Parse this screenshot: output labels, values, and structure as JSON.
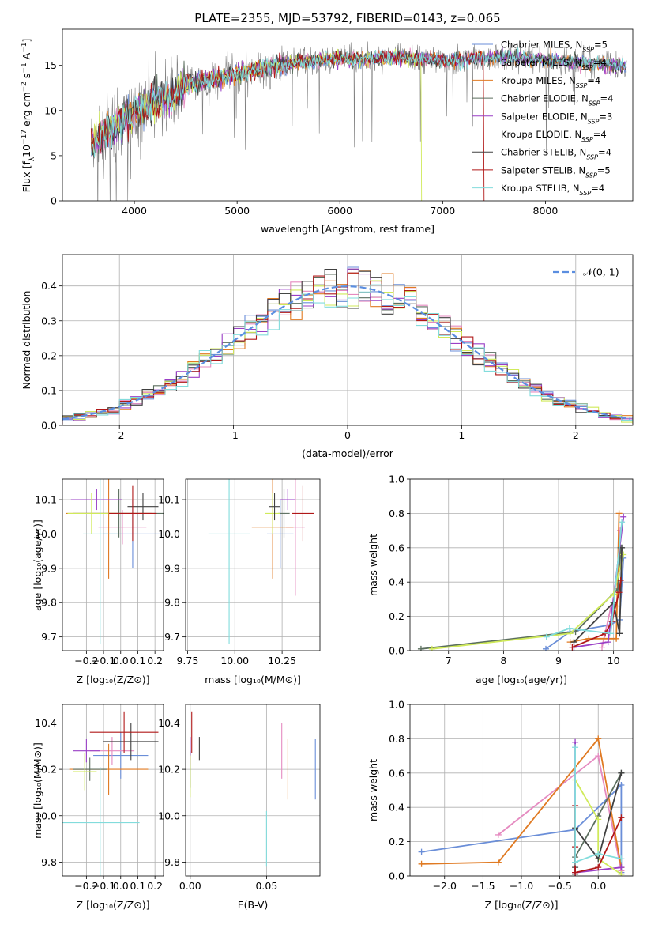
{
  "chart_data": [
    {
      "id": "spectrum",
      "type": "line",
      "title": "PLATE=2355, MJD=53792, FIBERID=0143, z=0.065",
      "xlabel": "wavelength [Angstrom, rest frame]",
      "ylabel": "Flux [fλ10⁻¹⁷ erg cm⁻² s⁻¹ A⁻¹]",
      "xlim": [
        3300,
        8850
      ],
      "ylim": [
        0,
        19
      ],
      "xticks": [
        4000,
        5000,
        6000,
        7000,
        8000
      ],
      "yticks": [
        0,
        5,
        10,
        15
      ],
      "grid": false,
      "legend": "right",
      "series": [
        {
          "name": "Chabrier MILES, NSSP=5",
          "color": "#6a8ed8"
        },
        {
          "name": "Salpeter MILES, NSSP=4",
          "color": "#e58ac0"
        },
        {
          "name": "Kroupa MILES, NSSP=4",
          "color": "#e07a22"
        },
        {
          "name": "Chabrier ELODIE, NSSP=4",
          "color": "#5b6e5e"
        },
        {
          "name": "Salpeter ELODIE, NSSP=3",
          "color": "#9a3fc6"
        },
        {
          "name": "Kroupa ELODIE, NSSP=4",
          "color": "#d0ea5a"
        },
        {
          "name": "Chabrier STELIB, NSSP=4",
          "color": "#404040"
        },
        {
          "name": "Salpeter STELIB, NSSP=5",
          "color": "#b01818"
        },
        {
          "name": "Kroupa STELIB, NSSP=4",
          "color": "#82dcdc"
        }
      ],
      "observed_color": "#808080",
      "continuum": {
        "x": [
          3580,
          3700,
          3800,
          3900,
          4000,
          4100,
          4200,
          4300,
          4400,
          4500,
          4600,
          4800,
          5000,
          5200,
          5500,
          5800,
          6000,
          6200,
          6500,
          6800,
          7000,
          7300,
          7600,
          8000,
          8400,
          8800
        ],
        "y": [
          6.0,
          7.5,
          8.0,
          9.0,
          10.0,
          10.5,
          11.2,
          11.2,
          11.9,
          12.9,
          13.1,
          13.6,
          14.0,
          14.6,
          15.2,
          15.6,
          15.8,
          15.7,
          15.9,
          15.7,
          15.5,
          15.7,
          16.0,
          15.6,
          15.3,
          14.8
        ]
      },
      "dropouts": [
        {
          "name": "Kroupa ELODIE, NSSP=4",
          "x": 6790
        },
        {
          "name": "Salpeter STELIB, NSSP=5",
          "x": 7400
        }
      ]
    },
    {
      "id": "residuals",
      "type": "histogram",
      "xlabel": "(data-model)/error",
      "ylabel": "Normed distribution",
      "xlim": [
        -2.5,
        2.5
      ],
      "ylim": [
        0,
        0.49
      ],
      "xticks": [
        -2,
        -1,
        0,
        1,
        2
      ],
      "yticks": [
        0.0,
        0.1,
        0.2,
        0.3,
        0.4
      ],
      "grid": true,
      "legend": "top-right",
      "reference": {
        "name": "𝒩(0, 1)",
        "color": "#5b8ee0",
        "mean": 0,
        "sigma": 1
      },
      "bin_width": 0.1
    },
    {
      "id": "age_vs_Z",
      "type": "errorbar",
      "xlabel": "Z [log₁₀(Z/Z⊙)]",
      "ylabel": "age  [log₁₀(age/yr)]",
      "xlim": [
        -0.34,
        0.25
      ],
      "ylim": [
        9.66,
        10.16
      ],
      "xticks": [
        -0.2,
        -0.1,
        0.0,
        0.1,
        0.2
      ],
      "xtick_labels": [
        "−0.2",
        "−0.1",
        "0.0",
        "0.1",
        "0.2"
      ],
      "yticks": [
        9.7,
        9.8,
        9.9,
        10.0,
        10.1
      ],
      "grid": true,
      "points": [
        {
          "color": "#6a8ed8",
          "x": 0.07,
          "xerr": 0.17,
          "y": 10.0,
          "yerr": 0.1
        },
        {
          "color": "#e58ac0",
          "x": 0.01,
          "xerr": 0.14,
          "y": 10.02,
          "yerr": 0.05
        },
        {
          "color": "#e07a22",
          "x": -0.07,
          "xerr": 0.25,
          "y": 10.06,
          "yerr": 0.19
        },
        {
          "color": "#5b6e5e",
          "x": -0.01,
          "xerr": 0.27,
          "y": 10.06,
          "yerr": 0.07
        },
        {
          "color": "#9a3fc6",
          "x": -0.14,
          "xerr": 0.15,
          "y": 10.1,
          "yerr": 0.03
        },
        {
          "color": "#d0ea5a",
          "x": -0.17,
          "xerr": 0.14,
          "y": 10.06,
          "yerr": 0.06
        },
        {
          "color": "#404040",
          "x": 0.13,
          "xerr": 0.09,
          "y": 10.08,
          "yerr": 0.04
        },
        {
          "color": "#b01818",
          "x": 0.07,
          "xerr": 0.14,
          "y": 10.06,
          "yerr": 0.08
        },
        {
          "color": "#82dcdc",
          "x": -0.12,
          "xerr": 0.1,
          "y": 10.0,
          "yerr": 0.32
        }
      ]
    },
    {
      "id": "age_vs_mass",
      "type": "errorbar",
      "xlabel": "mass [log₁₀(M/M⊙)]",
      "ylabel": "",
      "xlim": [
        9.74,
        10.45
      ],
      "ylim": [
        9.66,
        10.16
      ],
      "xticks": [
        9.75,
        10.0,
        10.25
      ],
      "xtick_labels": [
        "9.75",
        "10.00",
        "10.25"
      ],
      "yticks": [
        9.7,
        9.8,
        9.9,
        10.0,
        10.1
      ],
      "grid": true,
      "points": [
        {
          "color": "#6a8ed8",
          "x": 10.24,
          "xerr": 0.07,
          "y": 10.0,
          "yerr": 0.1
        },
        {
          "color": "#e58ac0",
          "x": 10.32,
          "xerr": 0.05,
          "y": 10.02,
          "yerr": 0.2
        },
        {
          "color": "#e07a22",
          "x": 10.2,
          "xerr": 0.11,
          "y": 10.02,
          "yerr": 0.15
        },
        {
          "color": "#5b6e5e",
          "x": 10.26,
          "xerr": 0.03,
          "y": 10.06,
          "yerr": 0.07
        },
        {
          "color": "#9a3fc6",
          "x": 10.28,
          "xerr": 0.04,
          "y": 10.1,
          "yerr": 0.03
        },
        {
          "color": "#d0ea5a",
          "x": 10.2,
          "xerr": 0.04,
          "y": 10.06,
          "yerr": 0.06
        },
        {
          "color": "#404040",
          "x": 10.21,
          "xerr": 0.03,
          "y": 10.08,
          "yerr": 0.04
        },
        {
          "color": "#b01818",
          "x": 10.36,
          "xerr": 0.06,
          "y": 10.06,
          "yerr": 0.08
        },
        {
          "color": "#82dcdc",
          "x": 9.97,
          "xerr": 0.11,
          "y": 10.0,
          "yerr": 0.32
        }
      ]
    },
    {
      "id": "weight_vs_age",
      "type": "line",
      "xlabel": "age  [log₁₀(age/yr)]",
      "ylabel": "mass weight",
      "xlim": [
        6.3,
        10.35
      ],
      "ylim": [
        0,
        1.0
      ],
      "xticks": [
        7,
        8,
        9,
        10
      ],
      "yticks": [
        0.0,
        0.2,
        0.4,
        0.6,
        0.8,
        1.0
      ],
      "grid": true,
      "series": [
        {
          "color": "#6a8ed8",
          "x": [
            8.77,
            9.21,
            9.93,
            10.11,
            10.18
          ],
          "y": [
            0.01,
            0.11,
            0.15,
            0.18,
            0.54
          ]
        },
        {
          "color": "#e58ac0",
          "x": [
            9.79,
            9.95,
            10.06,
            10.12
          ],
          "y": [
            0.02,
            0.25,
            0.26,
            0.7
          ]
        },
        {
          "color": "#e07a22",
          "x": [
            9.21,
            9.55,
            10.05,
            10.1
          ],
          "y": [
            0.05,
            0.07,
            0.07,
            0.8
          ]
        },
        {
          "color": "#5b6e5e",
          "x": [
            6.5,
            9.31,
            10.08,
            10.13
          ],
          "y": [
            0.01,
            0.11,
            0.36,
            0.6
          ]
        },
        {
          "color": "#9a3fc6",
          "x": [
            9.28,
            9.9,
            10.18
          ],
          "y": [
            0.02,
            0.05,
            0.78
          ]
        },
        {
          "color": "#d0ea5a",
          "x": [
            6.7,
            9.21,
            10.0,
            10.18
          ],
          "y": [
            0.01,
            0.1,
            0.33,
            0.56
          ]
        },
        {
          "color": "#404040",
          "x": [
            9.28,
            10.0,
            10.11,
            10.15
          ],
          "y": [
            0.05,
            0.28,
            0.1,
            0.6
          ]
        },
        {
          "color": "#b01818",
          "x": [
            9.25,
            9.85,
            9.97,
            10.1,
            10.13
          ],
          "y": [
            0.02,
            0.1,
            0.17,
            0.34,
            0.41
          ]
        },
        {
          "color": "#82dcdc",
          "x": [
            8.78,
            9.2,
            9.95,
            10.15
          ],
          "y": [
            0.08,
            0.13,
            0.1,
            0.75
          ]
        }
      ]
    },
    {
      "id": "mass_vs_Z",
      "type": "errorbar",
      "xlabel": "Z [log₁₀(Z/Z⊙)]",
      "ylabel": "mass [log₁₀(M/M⊙)]",
      "xlim": [
        -0.34,
        0.25
      ],
      "ylim": [
        9.74,
        10.48
      ],
      "xticks": [
        -0.2,
        -0.1,
        0.0,
        0.1,
        0.2
      ],
      "xtick_labels": [
        "−0.2",
        "−0.1",
        "0.0",
        "0.1",
        "0.2"
      ],
      "yticks": [
        9.8,
        10.0,
        10.2,
        10.4
      ],
      "grid": true,
      "points": [
        {
          "color": "#6a8ed8",
          "x": 0.0,
          "xerr": 0.16,
          "y": 10.26,
          "yerr": 0.1
        },
        {
          "color": "#e58ac0",
          "x": -0.05,
          "xerr": 0.13,
          "y": 10.28,
          "yerr": 0.06
        },
        {
          "color": "#e07a22",
          "x": -0.07,
          "xerr": 0.23,
          "y": 10.2,
          "yerr": 0.11
        },
        {
          "color": "#5b6e5e",
          "x": -0.18,
          "xerr": 0.1,
          "y": 10.2,
          "yerr": 0.05
        },
        {
          "color": "#9a3fc6",
          "x": -0.2,
          "xerr": 0.08,
          "y": 10.28,
          "yerr": 0.05
        },
        {
          "color": "#d0ea5a",
          "x": -0.21,
          "xerr": 0.07,
          "y": 10.19,
          "yerr": 0.08
        },
        {
          "color": "#404040",
          "x": 0.06,
          "xerr": 0.16,
          "y": 10.32,
          "yerr": 0.08
        },
        {
          "color": "#b01818",
          "x": 0.02,
          "xerr": 0.2,
          "y": 10.36,
          "yerr": 0.09
        },
        {
          "color": "#82dcdc",
          "x": -0.12,
          "xerr": 0.23,
          "y": 9.97,
          "yerr": 0.24
        }
      ]
    },
    {
      "id": "mass_vs_ebv",
      "type": "errorbar",
      "xlabel": "E(B-V)",
      "ylabel": "",
      "xlim": [
        -0.003,
        0.085
      ],
      "ylim": [
        9.74,
        10.48
      ],
      "xticks": [
        0.0,
        0.05
      ],
      "xtick_labels": [
        "0.00",
        "0.05"
      ],
      "yticks": [
        9.8,
        10.0,
        10.2,
        10.4
      ],
      "grid": true,
      "points": [
        {
          "color": "#6a8ed8",
          "x": 0.082,
          "xerr": 0,
          "y": 10.2,
          "yerr": 0.13
        },
        {
          "color": "#e58ac0",
          "x": 0.06,
          "xerr": 0,
          "y": 10.28,
          "yerr": 0.12
        },
        {
          "color": "#e07a22",
          "x": 0.064,
          "xerr": 0,
          "y": 10.2,
          "yerr": 0.13
        },
        {
          "color": "#5b6e5e",
          "x": 0.0,
          "xerr": 0,
          "y": 10.2,
          "yerr": 0.08
        },
        {
          "color": "#9a3fc6",
          "x": 0.0,
          "xerr": 0,
          "y": 10.28,
          "yerr": 0.06
        },
        {
          "color": "#d0ea5a",
          "x": 0.0,
          "xerr": 0,
          "y": 10.17,
          "yerr": 0.09
        },
        {
          "color": "#404040",
          "x": 0.006,
          "xerr": 0,
          "y": 10.29,
          "yerr": 0.05
        },
        {
          "color": "#b01818",
          "x": 0.001,
          "xerr": 0,
          "y": 10.36,
          "yerr": 0.09
        },
        {
          "color": "#82dcdc",
          "x": 0.05,
          "xerr": 0,
          "y": 9.9,
          "yerr": 0.12
        }
      ]
    },
    {
      "id": "weight_vs_Z",
      "type": "line",
      "xlabel": "Z [log₁₀(Z/Z⊙)]",
      "ylabel": "mass weight",
      "xlim": [
        -2.45,
        0.45
      ],
      "ylim": [
        0,
        1.0
      ],
      "xticks": [
        -2.0,
        -1.5,
        -1.0,
        -0.5,
        0.0
      ],
      "xtick_labels": [
        "−2.0",
        "−1.5",
        "−1.0",
        "−0.5",
        "0.0"
      ],
      "yticks": [
        0.0,
        0.2,
        0.4,
        0.6,
        0.8,
        1.0
      ],
      "grid": true,
      "series": [
        {
          "color": "#6a8ed8",
          "x": [
            -2.3,
            -0.3,
            0.3,
            0.3,
            0.3
          ],
          "y": [
            0.14,
            0.27,
            0.53,
            0.02,
            0.05
          ]
        },
        {
          "color": "#e58ac0",
          "x": [
            -1.3,
            0.0,
            0.3,
            0.3
          ],
          "y": [
            0.24,
            0.7,
            0.03,
            0.01
          ]
        },
        {
          "color": "#e07a22",
          "x": [
            -2.3,
            -1.3,
            0.0,
            0.3
          ],
          "y": [
            0.07,
            0.08,
            0.8,
            0.05
          ]
        },
        {
          "color": "#5b6e5e",
          "x": [
            -0.3,
            -0.3,
            0.0,
            0.3
          ],
          "y": [
            0.01,
            0.11,
            0.35,
            0.6
          ]
        },
        {
          "color": "#9a3fc6",
          "x": [
            -0.3,
            -0.3,
            0.3
          ],
          "y": [
            0.78,
            0.02,
            0.05
          ]
        },
        {
          "color": "#d0ea5a",
          "x": [
            -0.3,
            0.0,
            0.0,
            0.3
          ],
          "y": [
            0.56,
            0.33,
            0.1,
            0.01
          ]
        },
        {
          "color": "#404040",
          "x": [
            -0.3,
            -0.3,
            0.0,
            0.3
          ],
          "y": [
            0.05,
            0.28,
            0.1,
            0.6
          ]
        },
        {
          "color": "#b01818",
          "x": [
            -0.3,
            -0.3,
            -0.3,
            0.0,
            0.3
          ],
          "y": [
            0.41,
            0.17,
            0.02,
            0.05,
            0.34
          ]
        },
        {
          "color": "#82dcdc",
          "x": [
            -0.3,
            -0.3,
            0.0,
            0.3
          ],
          "y": [
            0.75,
            0.08,
            0.13,
            0.1
          ]
        }
      ]
    }
  ]
}
